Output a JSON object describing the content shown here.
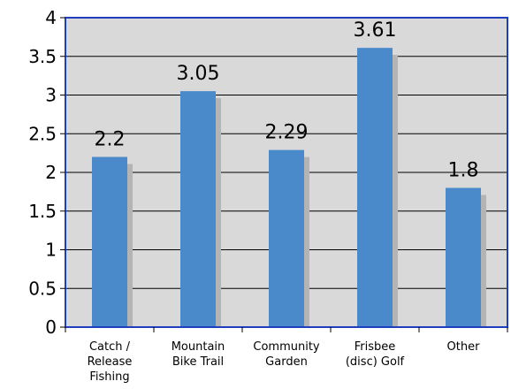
{
  "chart_data": {
    "type": "bar",
    "categories": [
      [
        "Catch /",
        "Release",
        "Fishing"
      ],
      [
        "Mountain",
        "Bike Trail"
      ],
      [
        "Community",
        "Garden"
      ],
      [
        "Frisbee",
        "(disc) Golf"
      ],
      [
        "Other"
      ]
    ],
    "values": [
      2.2,
      3.05,
      2.29,
      3.61,
      1.8
    ],
    "data_labels": [
      "2.2",
      "3.05",
      "2.29",
      "3.61",
      "1.8"
    ],
    "yticks": [
      "0",
      "0.5",
      "1",
      "1.5",
      "2",
      "2.5",
      "3",
      "3.5",
      "4"
    ],
    "ylim": [
      0,
      4
    ],
    "title": "",
    "xlabel": "",
    "ylabel": "",
    "grid": true,
    "legend": "none",
    "colors": {
      "bar": "#4a8acb",
      "bar_shadow": "#b4b4b4",
      "plot_background": "#d9d9d9",
      "plot_border": "#1f3fbf",
      "gridline": "#000000"
    }
  }
}
